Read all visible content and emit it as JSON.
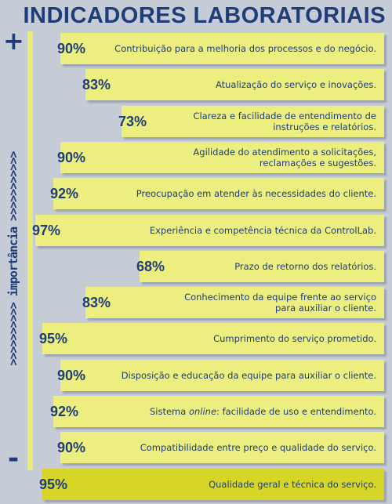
{
  "title": "INDICADORES LABORATORIAIS",
  "axis": {
    "top_symbol": "+",
    "bottom_symbol": "-",
    "label": ">>>>>>>>>>  importância  >>>>>>>>>>>"
  },
  "colors": {
    "bar": "#ecee80",
    "bar_highlight": "#d7d628",
    "text": "#1f3d78",
    "background": "#c6ccd6"
  },
  "chart_data": {
    "type": "bar",
    "orientation": "horizontal",
    "title": "INDICADORES LABORATORIAIS",
    "xlabel": "",
    "ylabel": "importância",
    "xlim": [
      0,
      100
    ],
    "categories": [
      "Contribuição para a melhoria dos processos e do negócio.",
      "Atualização do serviço e inovações.",
      "Clareza e facilidade de entendimento de instruções e relatórios.",
      "Agilidade do atendimento a solicitações, reclamações e sugestões.",
      "Preocupação em atender às necessidades do cliente.",
      "Experiência e competência técnica da ControlLab.",
      "Prazo de retorno dos relatórios.",
      "Conhecimento da equipe frente ao serviço para auxiliar o cliente.",
      "Cumprimento do serviço prometido.",
      "Disposição e educação da equipe para auxiliar o cliente.",
      "Sistema online: facilidade de uso e entendimento.",
      "Compatibilidade entre preço e qualidade do serviço.",
      "Qualidade geral e técnica do serviço."
    ],
    "values": [
      90,
      83,
      73,
      90,
      92,
      97,
      68,
      83,
      95,
      90,
      92,
      90,
      95
    ],
    "labels": [
      "90%",
      "83%",
      "73%",
      "90%",
      "92%",
      "97%",
      "68%",
      "83%",
      "95%",
      "90%",
      "92%",
      "90%",
      "95%"
    ],
    "display_lines": [
      "Contribuição para a melhoria dos processos e do negócio.",
      "Atualização do serviço e inovações.",
      "Clareza e facilidade de entendimento de\ninstruções e relatórios.",
      "Agilidade do atendimento a solicitações,\nreclamações e sugestões.",
      "Preocupação em atender às necessidades do cliente.",
      "Experiência e competência técnica da ControlLab.",
      "Prazo de retorno dos relatórios.",
      "Conhecimento da equipe frente ao serviço\npara auxiliar o cliente.",
      "Cumprimento do serviço prometido.",
      "Disposição e educação da equipe para auxiliar o cliente.",
      "Sistema online: facilidade de uso e entendimento.",
      "Compatibilidade entre preço e qualidade do serviço.",
      "Qualidade geral e técnica do serviço."
    ],
    "highlight_index": 12,
    "grid": false,
    "legend": "none"
  }
}
